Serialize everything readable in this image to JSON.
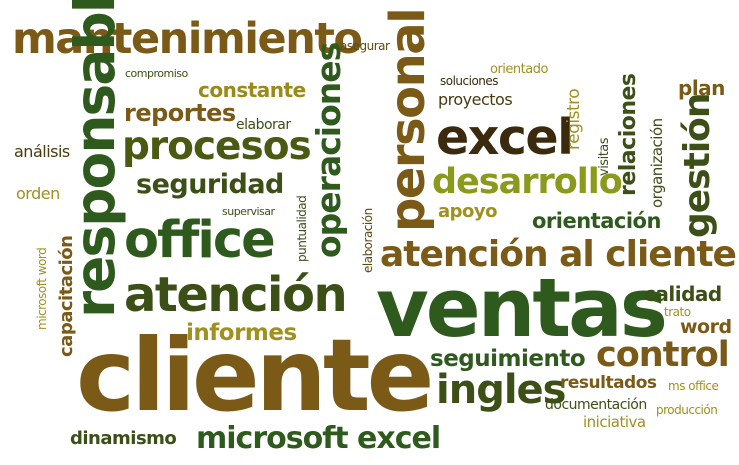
{
  "words": [
    {
      "key": "mantenimiento",
      "text": "mantenimiento",
      "color": "#7a5a16"
    },
    {
      "key": "asegurar",
      "text": "asegurar",
      "color": "#5a4a12"
    },
    {
      "key": "compromiso",
      "text": "compromiso",
      "color": "#3b4f16"
    },
    {
      "key": "constante",
      "text": "constante",
      "color": "#9a8a1a"
    },
    {
      "key": "responsable",
      "text": "responsable",
      "color": "#2e5a1e"
    },
    {
      "key": "reportes",
      "text": "reportes",
      "color": "#7a5a16"
    },
    {
      "key": "elaborar",
      "text": "elaborar",
      "color": "#3b4f16"
    },
    {
      "key": "analisis",
      "text": "análisis",
      "color": "#4a3a12"
    },
    {
      "key": "procesos",
      "text": "procesos",
      "color": "#4a5a12"
    },
    {
      "key": "operaciones",
      "text": "operaciones",
      "color": "#2e5a1e"
    },
    {
      "key": "personal",
      "text": "personal",
      "color": "#7a5a16"
    },
    {
      "key": "soluciones",
      "text": "soluciones",
      "color": "#3b2a0e"
    },
    {
      "key": "orientado",
      "text": "orientado",
      "color": "#a09020"
    },
    {
      "key": "proyectos",
      "text": "proyectos",
      "color": "#4a3a12"
    },
    {
      "key": "registro",
      "text": "registro",
      "color": "#a09020"
    },
    {
      "key": "relaciones",
      "text": "relaciones",
      "color": "#3b4f16"
    },
    {
      "key": "organizacion",
      "text": "organización",
      "color": "#3b4f16"
    },
    {
      "key": "plan",
      "text": "plan",
      "color": "#7a5a16"
    },
    {
      "key": "excel",
      "text": "excel",
      "color": "#3b2a0e"
    },
    {
      "key": "gestion",
      "text": "gestión",
      "color": "#3b4f16"
    },
    {
      "key": "visitas",
      "text": "visitas",
      "color": "#3b4f16"
    },
    {
      "key": "seguridad",
      "text": "seguridad",
      "color": "#3b4f16"
    },
    {
      "key": "orden",
      "text": "orden",
      "color": "#a09020"
    },
    {
      "key": "desarrollo",
      "text": "desarrollo",
      "color": "#8a9a1a"
    },
    {
      "key": "supervisar",
      "text": "supervisar",
      "color": "#3b4f16"
    },
    {
      "key": "puntualidad",
      "text": "puntualidad",
      "color": "#3b4f16"
    },
    {
      "key": "elaboracion",
      "text": "elaboración",
      "color": "#5a4a12"
    },
    {
      "key": "apoyo",
      "text": "apoyo",
      "color": "#a09020"
    },
    {
      "key": "orientacion",
      "text": "orientación",
      "color": "#2e5a1e"
    },
    {
      "key": "office",
      "text": "office",
      "color": "#2e5a1e"
    },
    {
      "key": "microsoft_word",
      "text": "microsoft word",
      "color": "#a09020"
    },
    {
      "key": "capacitacion",
      "text": "capacitación",
      "color": "#7a5a16"
    },
    {
      "key": "atencion_al_cliente",
      "text": "atención al cliente",
      "color": "#7a5a16"
    },
    {
      "key": "atencion",
      "text": "atención",
      "color": "#3b4f16"
    },
    {
      "key": "ventas",
      "text": "ventas",
      "color": "#2e5a1e"
    },
    {
      "key": "calidad",
      "text": "calidad",
      "color": "#3b4f16"
    },
    {
      "key": "trato",
      "text": "trato",
      "color": "#a09020"
    },
    {
      "key": "word",
      "text": "word",
      "color": "#7a5a16"
    },
    {
      "key": "informes",
      "text": "informes",
      "color": "#a09020"
    },
    {
      "key": "cliente",
      "text": "cliente",
      "color": "#7a5a16"
    },
    {
      "key": "seguimiento",
      "text": "seguimiento",
      "color": "#2e5a1e"
    },
    {
      "key": "control",
      "text": "control",
      "color": "#7a5a16"
    },
    {
      "key": "ingles",
      "text": "ingles",
      "color": "#3b4f16"
    },
    {
      "key": "resultados",
      "text": "resultados",
      "color": "#7a5a16"
    },
    {
      "key": "ms_office",
      "text": "ms office",
      "color": "#a09020"
    },
    {
      "key": "documentacion",
      "text": "documentación",
      "color": "#3b4f16"
    },
    {
      "key": "produccion",
      "text": "producción",
      "color": "#a09020"
    },
    {
      "key": "iniciativa",
      "text": "iniciativa",
      "color": "#a09020"
    },
    {
      "key": "dinamismo",
      "text": "dinamismo",
      "color": "#3b4f16"
    },
    {
      "key": "microsoft_excel",
      "text": "microsoft excel",
      "color": "#2e5a1e"
    }
  ]
}
